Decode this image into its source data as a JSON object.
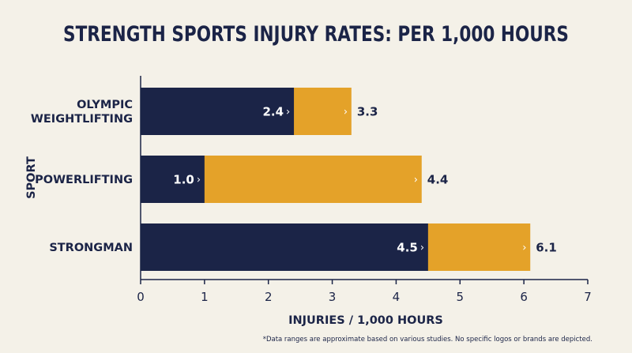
{
  "chart_data": {
    "type": "bar",
    "orientation": "horizontal",
    "stacked": "overlay",
    "title": "STRENGTH SPORTS INJURY RATES: PER 1,000 HOURS",
    "xlabel": "INJURIES / 1,000 HOURS",
    "ylabel": "SPORT",
    "xlim": [
      0,
      7
    ],
    "xticks": [
      "0",
      "1",
      "2",
      "3",
      "4",
      "5",
      "6",
      "7"
    ],
    "grid": false,
    "categories": [
      {
        "lines": [
          "OLYMPIC",
          "WEIGHTLIFTING"
        ]
      },
      {
        "lines": [
          "POWERLIFTING"
        ]
      },
      {
        "lines": [
          "STRONGMAN"
        ]
      }
    ],
    "series": [
      {
        "values": [
          2.4,
          1.0,
          4.5
        ],
        "labels": [
          "2.4",
          "1.0",
          "4.5"
        ],
        "color": "#1b2447"
      },
      {
        "values": [
          3.3,
          4.4,
          6.1
        ],
        "labels": [
          "3.3",
          "4.4",
          "6.1"
        ],
        "color": "#e4a229"
      }
    ],
    "chevron_glyph": "›",
    "footnote": "*Data ranges are approximate based on various studies. No specific logos or brands are depicted."
  },
  "colors": {
    "background": "#f4f1e8",
    "text": "#1b2447",
    "low": "#1b2447",
    "high": "#e4a229"
  }
}
